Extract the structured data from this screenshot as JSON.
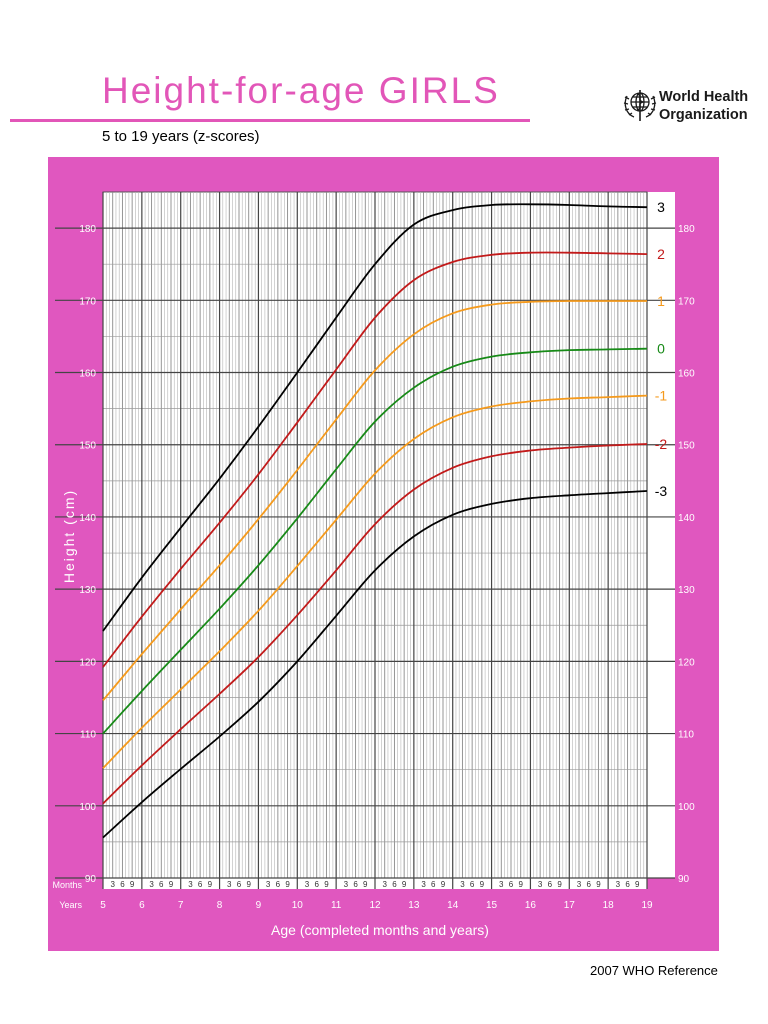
{
  "header": {
    "title": "Height-for-age  GIRLS",
    "subtitle": "5 to 19 years (z-scores)",
    "organization_line1": "World Health",
    "organization_line2": "Organization",
    "logo_icon": "who-emblem-icon"
  },
  "footer": {
    "reference": "2007 WHO Reference"
  },
  "colors": {
    "panel": "#e057bf",
    "title": "#e256b8",
    "z3": "#000000",
    "z2": "#c21a1a",
    "z1": "#f59a1c",
    "z0": "#178a17"
  },
  "chart_data": {
    "type": "line",
    "title": "Height-for-age  GIRLS",
    "subtitle": "5 to 19 years (z-scores)",
    "xlabel": "Age (completed months and years)",
    "ylabel": "Height (cm)",
    "x_row_labels": {
      "months": "Months",
      "years": "Years"
    },
    "xlim": [
      5,
      19
    ],
    "ylim": [
      90,
      185
    ],
    "x_ticks": [
      5,
      6,
      7,
      8,
      9,
      10,
      11,
      12,
      13,
      14,
      15,
      16,
      17,
      18,
      19
    ],
    "x_month_ticks": [
      "3",
      "6",
      "9"
    ],
    "y_ticks": [
      90,
      100,
      110,
      120,
      130,
      140,
      150,
      160,
      170,
      180
    ],
    "grid": true,
    "x": [
      5,
      6,
      7,
      8,
      9,
      10,
      11,
      12,
      13,
      14,
      15,
      16,
      17,
      18,
      19
    ],
    "series": [
      {
        "name": "3",
        "color": "#000000",
        "values": [
          124.2,
          131.6,
          138.5,
          145.3,
          152.5,
          160.0,
          167.6,
          175.0,
          180.5,
          182.5,
          183.2,
          183.3,
          183.2,
          183.0,
          182.9
        ]
      },
      {
        "name": "2",
        "color": "#c21a1a",
        "values": [
          119.2,
          126.2,
          132.8,
          139.2,
          145.9,
          153.1,
          160.4,
          167.6,
          172.8,
          175.3,
          176.3,
          176.6,
          176.6,
          176.5,
          176.4
        ]
      },
      {
        "name": "1",
        "color": "#f59a1c",
        "values": [
          114.6,
          121.0,
          127.2,
          133.3,
          139.7,
          146.5,
          153.5,
          160.3,
          165.3,
          168.2,
          169.4,
          169.8,
          169.9,
          169.9,
          169.9
        ]
      },
      {
        "name": "0",
        "color": "#178a17",
        "values": [
          110.0,
          115.9,
          121.6,
          127.3,
          133.3,
          139.8,
          146.6,
          153.2,
          157.9,
          160.8,
          162.2,
          162.8,
          163.1,
          163.2,
          163.3
        ]
      },
      {
        "name": "-1",
        "color": "#f59a1c",
        "values": [
          105.2,
          110.8,
          116.1,
          121.4,
          127.0,
          133.2,
          139.6,
          146.0,
          150.8,
          153.8,
          155.3,
          156.0,
          156.4,
          156.6,
          156.8
        ]
      },
      {
        "name": "-2",
        "color": "#c21a1a",
        "values": [
          100.3,
          105.6,
          110.6,
          115.5,
          120.6,
          126.4,
          132.6,
          139.0,
          143.8,
          146.8,
          148.4,
          149.2,
          149.6,
          149.9,
          150.1
        ]
      },
      {
        "name": "-3",
        "color": "#000000",
        "values": [
          95.6,
          100.5,
          105.1,
          109.6,
          114.4,
          120.0,
          126.3,
          132.6,
          137.3,
          140.3,
          141.8,
          142.6,
          143.0,
          143.3,
          143.6
        ]
      }
    ]
  }
}
